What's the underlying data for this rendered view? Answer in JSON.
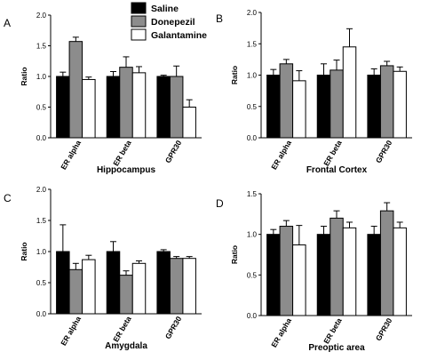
{
  "legend": [
    {
      "name": "Saline",
      "color": "#000000"
    },
    {
      "name": "Donepezil",
      "color": "#8c8c8c"
    },
    {
      "name": "Galantamine",
      "color": "#ffffff"
    }
  ],
  "chart_data": [
    {
      "type": "bar",
      "panel": "A",
      "xlabel": "Hippocampus",
      "ylabel": "Ratio",
      "ylim": [
        0,
        2.0
      ],
      "yticks": [
        0.0,
        0.5,
        1.0,
        1.5,
        2.0
      ],
      "ytick_labels": [
        "0.0",
        "0.5",
        "1.0",
        "1.5",
        "2.0"
      ],
      "categories": [
        "ER alpha",
        "ER beta",
        "GPR30"
      ],
      "series": [
        {
          "name": "Saline",
          "values": [
            1.0,
            1.0,
            1.0
          ],
          "errors": [
            0.07,
            0.08,
            0.02
          ]
        },
        {
          "name": "Donepezil",
          "values": [
            1.57,
            1.15,
            1.0
          ],
          "errors": [
            0.07,
            0.17,
            0.17
          ]
        },
        {
          "name": "Galantamine",
          "values": [
            0.95,
            1.06,
            0.5
          ],
          "errors": [
            0.04,
            0.1,
            0.12
          ]
        }
      ]
    },
    {
      "type": "bar",
      "panel": "B",
      "xlabel": "Frontal Cortex",
      "ylabel": "Ratio",
      "ylim": [
        0,
        2.0
      ],
      "yticks": [
        0.0,
        0.5,
        1.0,
        1.5,
        2.0
      ],
      "ytick_labels": [
        "0.0",
        "0.5",
        "1.0",
        "1.5",
        "2.0"
      ],
      "categories": [
        "ER alpha",
        "ER beta",
        "GPR30"
      ],
      "series": [
        {
          "name": "Saline",
          "values": [
            1.0,
            1.0,
            1.0
          ],
          "errors": [
            0.09,
            0.18,
            0.1
          ]
        },
        {
          "name": "Donepezil",
          "values": [
            1.18,
            1.08,
            1.15
          ],
          "errors": [
            0.07,
            0.16,
            0.07
          ]
        },
        {
          "name": "Galantamine",
          "values": [
            0.91,
            1.45,
            1.06
          ],
          "errors": [
            0.16,
            0.29,
            0.07
          ]
        }
      ]
    },
    {
      "type": "bar",
      "panel": "C",
      "xlabel": "Amygdala",
      "ylabel": "Ratio",
      "ylim": [
        0,
        2.0
      ],
      "yticks": [
        0.0,
        0.5,
        1.0,
        1.5,
        2.0
      ],
      "ytick_labels": [
        "0.0",
        "0.5",
        "1.0",
        "1.5",
        "2.0"
      ],
      "categories": [
        "ER alpha",
        "ER beta",
        "GPR30"
      ],
      "series": [
        {
          "name": "Saline",
          "values": [
            1.0,
            1.0,
            1.0
          ],
          "errors": [
            0.43,
            0.16,
            0.03
          ]
        },
        {
          "name": "Donepezil",
          "values": [
            0.71,
            0.62,
            0.89
          ],
          "errors": [
            0.1,
            0.07,
            0.03
          ]
        },
        {
          "name": "Galantamine",
          "values": [
            0.87,
            0.81,
            0.89
          ],
          "errors": [
            0.07,
            0.04,
            0.03
          ]
        }
      ]
    },
    {
      "type": "bar",
      "panel": "D",
      "xlabel": "Preoptic area",
      "ylabel": "Ratio",
      "ylim": [
        0,
        1.5
      ],
      "yticks": [
        0.0,
        0.5,
        1.0,
        1.5
      ],
      "ytick_labels": [
        "0.0",
        "0.5",
        "1.0",
        "1.5"
      ],
      "categories": [
        "ER alpha",
        "ER beta",
        "GPR30"
      ],
      "series": [
        {
          "name": "Saline",
          "values": [
            1.0,
            1.0,
            1.0
          ],
          "errors": [
            0.06,
            0.1,
            0.1
          ]
        },
        {
          "name": "Donepezil",
          "values": [
            1.1,
            1.2,
            1.29
          ],
          "errors": [
            0.07,
            0.09,
            0.1
          ]
        },
        {
          "name": "Galantamine",
          "values": [
            0.87,
            1.08,
            1.08
          ],
          "errors": [
            0.24,
            0.07,
            0.07
          ]
        }
      ]
    }
  ]
}
